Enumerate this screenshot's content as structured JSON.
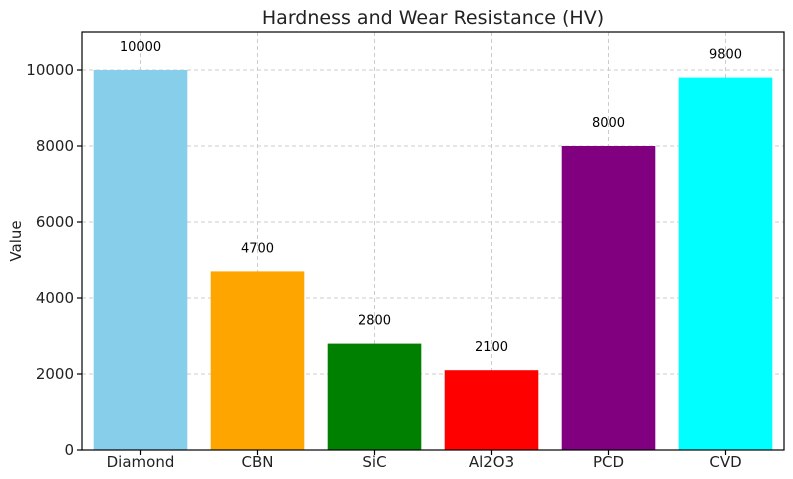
{
  "chart_data": {
    "type": "bar",
    "title": "Hardness and Wear Resistance (HV)",
    "xlabel": "",
    "ylabel": "Value",
    "categories": [
      "Diamond",
      "CBN",
      "SiC",
      "Al2O3",
      "PCD",
      "CVD"
    ],
    "values": [
      10000,
      4700,
      2800,
      2100,
      8000,
      9800
    ],
    "colors": [
      "#87CEEB",
      "#FFA500",
      "#008000",
      "#FF0000",
      "#800080",
      "#00FFFF"
    ],
    "ylim": [
      0,
      11000
    ],
    "yticks": [
      0,
      2000,
      4000,
      6000,
      8000,
      10000
    ],
    "grid": true,
    "data_labels": true
  }
}
